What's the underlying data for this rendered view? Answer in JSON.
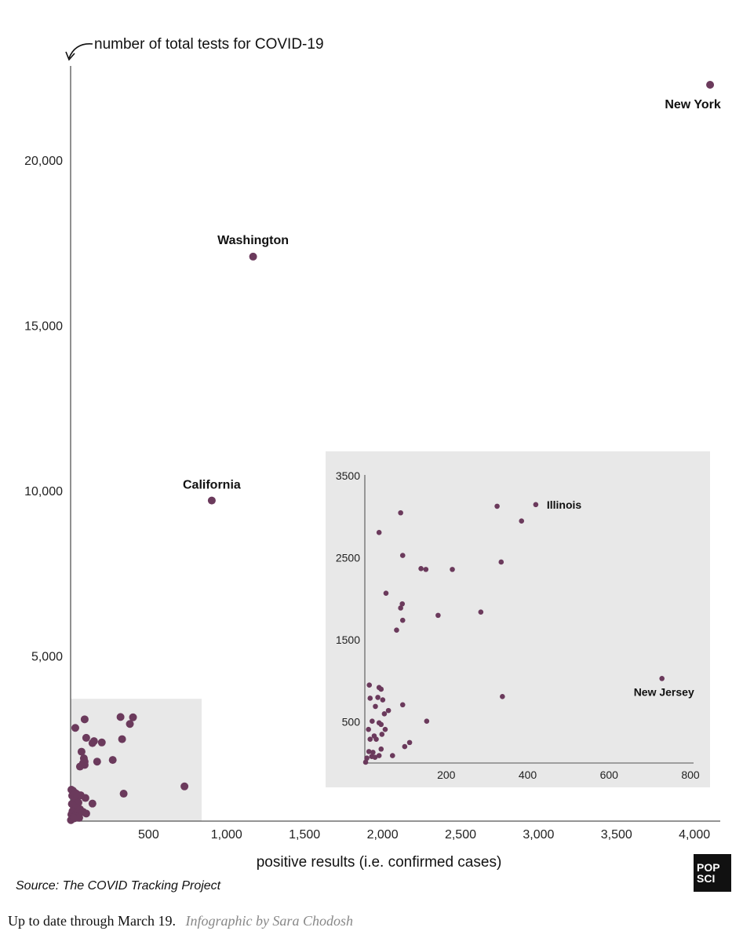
{
  "chart_data": [
    {
      "type": "scatter",
      "title": "",
      "ylabel": "number of total tests for COVID-19",
      "xlabel": "positive results (i.e. confirmed cases)",
      "xlim": [
        0,
        4150
      ],
      "ylim": [
        0,
        22850
      ],
      "x_ticks": [
        500,
        1000,
        1500,
        2000,
        2500,
        3000,
        3500,
        4000
      ],
      "x_tick_labels": [
        "500",
        "1,000",
        "1,500",
        "2,000",
        "2,500",
        "3,000",
        "3,500",
        "4,000"
      ],
      "y_ticks": [
        5000,
        10000,
        15000,
        20000
      ],
      "y_tick_labels": [
        "5,000",
        "10,000",
        "15,000",
        "20,000"
      ],
      "grid": false,
      "marker_color": "#6b3a5c",
      "highlight_region": {
        "x": [
          0,
          840
        ],
        "y": [
          0,
          3700
        ]
      },
      "points": [
        {
          "x": 4100,
          "y": 22280,
          "label": "New York"
        },
        {
          "x": 1170,
          "y": 17080,
          "label": "Washington"
        },
        {
          "x": 905,
          "y": 9700,
          "label": "California"
        },
        {
          "x": 730,
          "y": 1050
        },
        {
          "x": 400,
          "y": 3140
        },
        {
          "x": 380,
          "y": 2940
        },
        {
          "x": 320,
          "y": 3150
        },
        {
          "x": 330,
          "y": 2480
        },
        {
          "x": 340,
          "y": 830
        },
        {
          "x": 270,
          "y": 1850
        },
        {
          "x": 200,
          "y": 2380
        },
        {
          "x": 170,
          "y": 1800
        },
        {
          "x": 150,
          "y": 2420
        },
        {
          "x": 140,
          "y": 2360
        },
        {
          "x": 90,
          "y": 3080
        },
        {
          "x": 90,
          "y": 1700
        },
        {
          "x": 70,
          "y": 2100
        },
        {
          "x": 30,
          "y": 2820
        },
        {
          "x": 100,
          "y": 2520
        },
        {
          "x": 80,
          "y": 1750
        },
        {
          "x": 85,
          "y": 1900
        },
        {
          "x": 90,
          "y": 1800
        },
        {
          "x": 60,
          "y": 1650
        },
        {
          "x": 140,
          "y": 530
        },
        {
          "x": 95,
          "y": 700
        },
        {
          "x": 5,
          "y": 950
        },
        {
          "x": 15,
          "y": 920
        },
        {
          "x": 30,
          "y": 850
        },
        {
          "x": 10,
          "y": 770
        },
        {
          "x": 40,
          "y": 680
        },
        {
          "x": 25,
          "y": 600
        },
        {
          "x": 50,
          "y": 560
        },
        {
          "x": 8,
          "y": 520
        },
        {
          "x": 20,
          "y": 460
        },
        {
          "x": 35,
          "y": 400
        },
        {
          "x": 60,
          "y": 360
        },
        {
          "x": 80,
          "y": 280
        },
        {
          "x": 12,
          "y": 300
        },
        {
          "x": 45,
          "y": 250
        },
        {
          "x": 100,
          "y": 230
        },
        {
          "x": 5,
          "y": 200
        },
        {
          "x": 30,
          "y": 160
        },
        {
          "x": 18,
          "y": 110
        },
        {
          "x": 55,
          "y": 100
        },
        {
          "x": 8,
          "y": 60
        },
        {
          "x": 2,
          "y": 30
        },
        {
          "x": 22,
          "y": 80
        },
        {
          "x": 65,
          "y": 780
        },
        {
          "x": 40,
          "y": 820
        }
      ]
    },
    {
      "type": "scatter",
      "title": "",
      "inset": true,
      "xlim": [
        0,
        800
      ],
      "ylim": [
        0,
        3550
      ],
      "x_ticks": [
        200,
        400,
        600,
        800
      ],
      "x_tick_labels": [
        "200",
        "400",
        "600",
        "800"
      ],
      "y_ticks": [
        500,
        1500,
        2500,
        3500
      ],
      "y_tick_labels": [
        "500",
        "1500",
        "2500",
        "3500"
      ],
      "grid": false,
      "marker_color": "#6b3a5c",
      "background": "#e8e8e8",
      "points": [
        {
          "x": 420,
          "y": 3150,
          "label": "Illinois"
        },
        {
          "x": 730,
          "y": 1030,
          "label": "New Jersey"
        },
        {
          "x": 325,
          "y": 3130
        },
        {
          "x": 385,
          "y": 2950
        },
        {
          "x": 338,
          "y": 810
        },
        {
          "x": 335,
          "y": 2450
        },
        {
          "x": 285,
          "y": 1840
        },
        {
          "x": 215,
          "y": 2360
        },
        {
          "x": 180,
          "y": 1800
        },
        {
          "x": 150,
          "y": 2360
        },
        {
          "x": 138,
          "y": 2370
        },
        {
          "x": 88,
          "y": 3050
        },
        {
          "x": 93,
          "y": 2530
        },
        {
          "x": 35,
          "y": 2810
        },
        {
          "x": 52,
          "y": 2070
        },
        {
          "x": 92,
          "y": 1940
        },
        {
          "x": 88,
          "y": 1890
        },
        {
          "x": 93,
          "y": 1740
        },
        {
          "x": 78,
          "y": 1620
        },
        {
          "x": 93,
          "y": 710
        },
        {
          "x": 152,
          "y": 510
        },
        {
          "x": 11,
          "y": 950
        },
        {
          "x": 35,
          "y": 920
        },
        {
          "x": 40,
          "y": 900
        },
        {
          "x": 13,
          "y": 790
        },
        {
          "x": 44,
          "y": 770
        },
        {
          "x": 26,
          "y": 690
        },
        {
          "x": 58,
          "y": 640
        },
        {
          "x": 48,
          "y": 600
        },
        {
          "x": 18,
          "y": 510
        },
        {
          "x": 35,
          "y": 490
        },
        {
          "x": 40,
          "y": 470
        },
        {
          "x": 9,
          "y": 410
        },
        {
          "x": 50,
          "y": 410
        },
        {
          "x": 23,
          "y": 330
        },
        {
          "x": 42,
          "y": 350
        },
        {
          "x": 28,
          "y": 290
        },
        {
          "x": 13,
          "y": 290
        },
        {
          "x": 110,
          "y": 250
        },
        {
          "x": 98,
          "y": 200
        },
        {
          "x": 40,
          "y": 170
        },
        {
          "x": 10,
          "y": 140
        },
        {
          "x": 20,
          "y": 130
        },
        {
          "x": 68,
          "y": 90
        },
        {
          "x": 35,
          "y": 90
        },
        {
          "x": 17,
          "y": 80
        },
        {
          "x": 25,
          "y": 70
        },
        {
          "x": 2,
          "y": 10
        },
        {
          "x": 5,
          "y": 60
        },
        {
          "x": 32,
          "y": 800
        }
      ]
    }
  ],
  "source": "Source: The COVID Tracking Project",
  "footer": {
    "date_text": "Up to date through March 19.",
    "credit": "Infographic by Sara Chodosh"
  },
  "logo": {
    "line1": "POP",
    "line2": "SCI"
  }
}
